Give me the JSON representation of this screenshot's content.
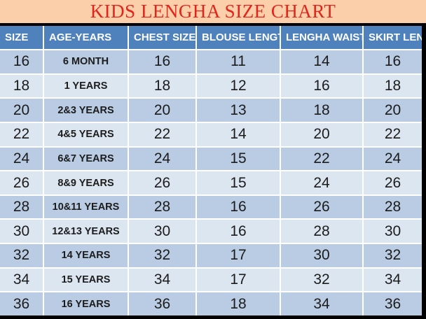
{
  "title": "KIDS LENGHA SIZE CHART",
  "colors": {
    "title_background": "#fbcfa9",
    "title_text": "#e1251c",
    "header_background": "#4f81bd",
    "header_text": "#ffffff",
    "row_dark": "#b9cce3",
    "row_light": "#dce6f1",
    "cell_text": "#1c1c1c",
    "table_border": "#000000"
  },
  "chart_data": {
    "type": "table",
    "title": "KIDS LENGHA SIZE CHART",
    "columns": [
      "SIZE",
      "AGE-YEARS",
      "CHEST SIZE",
      "BLOUSE LENGTH",
      "LENGHA WAIST",
      "SKIRT LENGTH"
    ],
    "rows": [
      [
        "16",
        "6 MONTH",
        "16",
        "11",
        "14",
        "16"
      ],
      [
        "18",
        "1 YEARS",
        "18",
        "12",
        "16",
        "18"
      ],
      [
        "20",
        "2&3 YEARS",
        "20",
        "13",
        "18",
        "20"
      ],
      [
        "22",
        "4&5 YEARS",
        "22",
        "14",
        "20",
        "22"
      ],
      [
        "24",
        "6&7 YEARS",
        "24",
        "15",
        "22",
        "24"
      ],
      [
        "26",
        "8&9 YEARS",
        "26",
        "15",
        "24",
        "26"
      ],
      [
        "28",
        "10&11 YEARS",
        "28",
        "16",
        "26",
        "28"
      ],
      [
        "30",
        "12&13 YEARS",
        "30",
        "16",
        "28",
        "30"
      ],
      [
        "32",
        "14 YEARS",
        "32",
        "17",
        "30",
        "32"
      ],
      [
        "34",
        "15 YEARS",
        "34",
        "17",
        "32",
        "34"
      ],
      [
        "36",
        "16 YEARS",
        "36",
        "18",
        "34",
        "36"
      ]
    ],
    "layout": {
      "row_striping": "odd rows dark blue, even rows light blue",
      "last_column_clipped": true
    }
  }
}
